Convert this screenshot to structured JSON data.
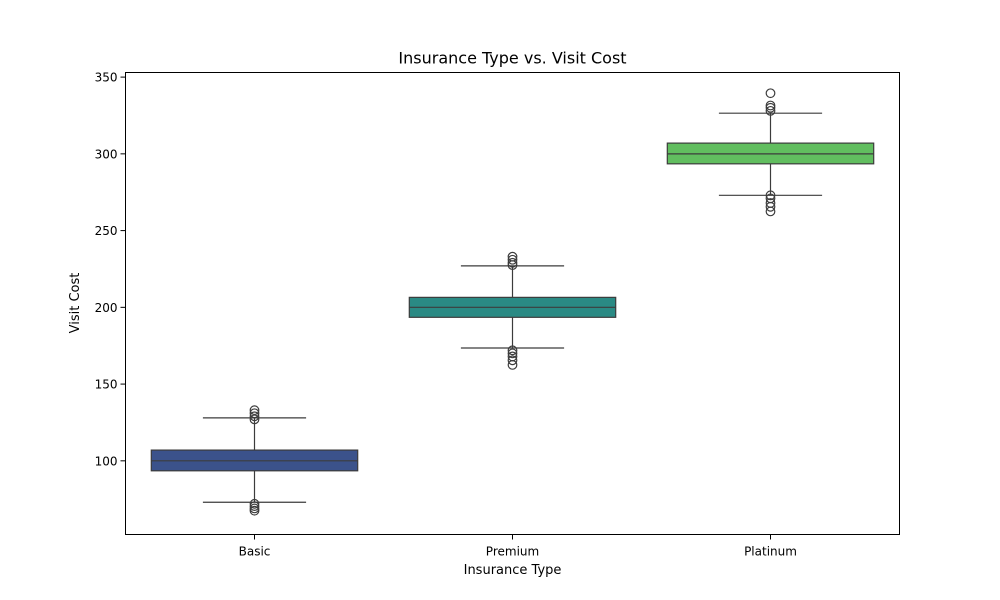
{
  "chart_data": {
    "type": "box",
    "title": "Insurance Type vs. Visit Cost",
    "xlabel": "Insurance Type",
    "ylabel": "Visit Cost",
    "categories": [
      "Basic",
      "Premium",
      "Platinum"
    ],
    "ylim": [
      52,
      353
    ],
    "yticks": [
      100,
      150,
      200,
      250,
      300,
      350
    ],
    "grid": false,
    "series": [
      {
        "category": "Basic",
        "color": "#3b528b",
        "q1": 93.5,
        "median": 100,
        "q3": 107,
        "whisker_low": 73,
        "whisker_high": 128,
        "outliers": [
          67.5,
          69,
          70.5,
          72,
          127,
          129,
          131,
          133
        ]
      },
      {
        "category": "Premium",
        "color": "#2a8a84",
        "q1": 193.5,
        "median": 200,
        "q3": 206.5,
        "whisker_low": 173.5,
        "whisker_high": 227,
        "outliers": [
          162.5,
          165.5,
          168,
          170,
          172,
          227.5,
          229,
          231,
          233
        ]
      },
      {
        "category": "Platinum",
        "color": "#61be5f",
        "q1": 293.5,
        "median": 300,
        "q3": 307,
        "whisker_low": 273,
        "whisker_high": 326.5,
        "outliers": [
          262.5,
          265.5,
          268,
          271,
          273,
          328,
          330,
          331.5,
          339.5
        ]
      }
    ]
  }
}
